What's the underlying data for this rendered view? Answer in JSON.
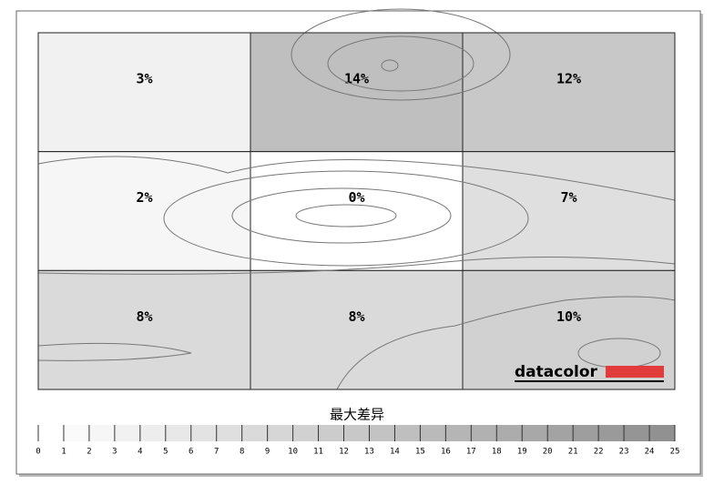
{
  "chart_data": {
    "type": "heatmap",
    "rows": [
      [
        3,
        14,
        12
      ],
      [
        2,
        0,
        7
      ],
      [
        8,
        8,
        10
      ]
    ],
    "value_labels": [
      [
        "3%",
        "14%",
        "12%"
      ],
      [
        "2%",
        "0%",
        "7%"
      ],
      [
        "8%",
        "8%",
        "10%"
      ]
    ],
    "color_range": [
      "#ffffff",
      "#8c8c8c"
    ],
    "colorbar": {
      "title": "最大差异",
      "lim": [
        0,
        25
      ],
      "ticks": [
        0,
        1,
        2,
        3,
        4,
        5,
        6,
        7,
        8,
        9,
        10,
        11,
        12,
        13,
        14,
        15,
        16,
        17,
        18,
        19,
        20,
        21,
        22,
        23,
        24,
        25
      ]
    },
    "logo": "datacolor"
  }
}
